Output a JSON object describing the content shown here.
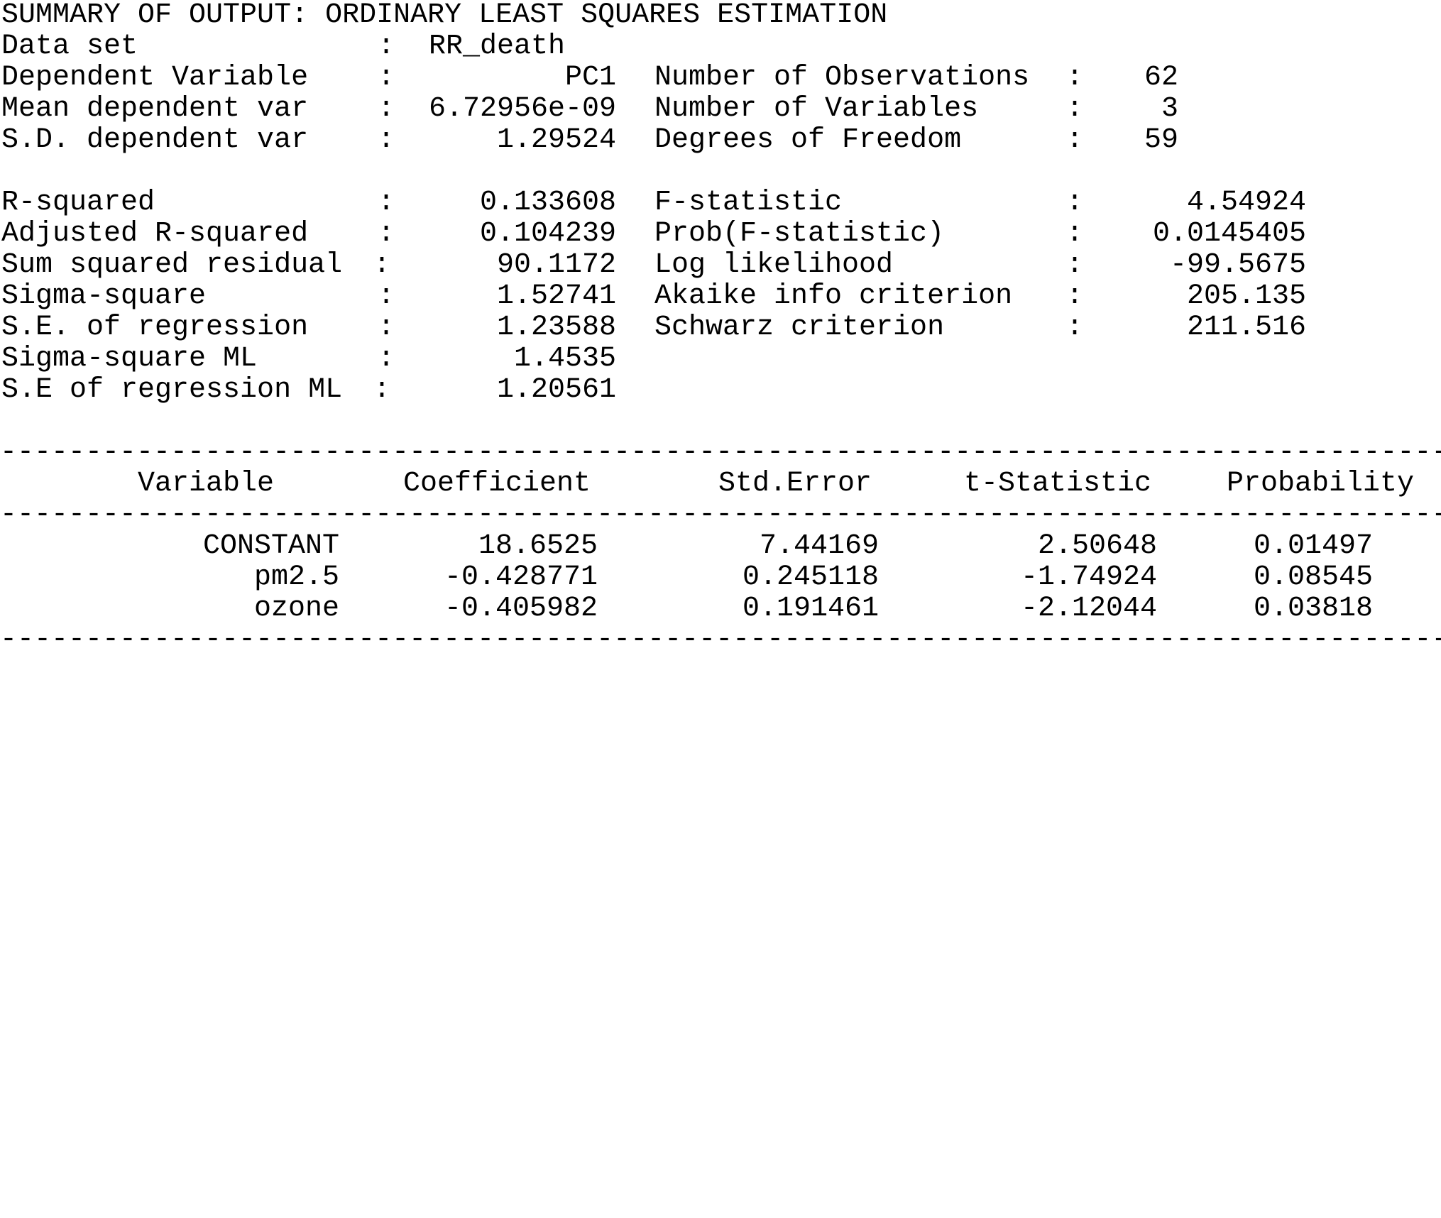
{
  "title": "SUMMARY OF OUTPUT: ORDINARY LEAST SQUARES ESTIMATION",
  "dataset": {
    "label": "Data set",
    "value": "RR_death"
  },
  "left_stats_top": [
    {
      "label": "Dependent Variable",
      "value": "PC1"
    },
    {
      "label": "Mean dependent var",
      "value": "6.72956e-09"
    },
    {
      "label": "S.D. dependent var",
      "value": "1.29524"
    }
  ],
  "right_stats_top": [
    {
      "label": "Number of Observations",
      "value": "62"
    },
    {
      "label": "Number of Variables",
      "value": "3"
    },
    {
      "label": "Degrees of Freedom",
      "value": "59"
    }
  ],
  "left_stats_bottom": [
    {
      "label": "R-squared",
      "value": "0.133608"
    },
    {
      "label": "Adjusted R-squared",
      "value": "0.104239"
    },
    {
      "label": "Sum squared residual",
      "value": "90.1172"
    },
    {
      "label": "Sigma-square",
      "value": "1.52741"
    },
    {
      "label": "S.E. of regression",
      "value": "1.23588"
    },
    {
      "label": "Sigma-square ML",
      "value": "1.4535"
    },
    {
      "label": "S.E of regression ML",
      "value": "1.20561"
    }
  ],
  "right_stats_bottom": [
    {
      "label": "F-statistic",
      "value": "4.54924"
    },
    {
      "label": "Prob(F-statistic)",
      "value": "0.0145405"
    },
    {
      "label": "Log likelihood",
      "value": "-99.5675"
    },
    {
      "label": "Akaike info criterion",
      "value": "205.135"
    },
    {
      "label": "Schwarz criterion",
      "value": "211.516"
    }
  ],
  "table": {
    "headers": [
      "Variable",
      "Coefficient",
      "Std.Error",
      "t-Statistic",
      "Probability"
    ],
    "rows": [
      {
        "variable": "CONSTANT",
        "coefficient": "18.6525",
        "std_error": "7.44169",
        "t_statistic": "2.50648",
        "probability": "0.01497"
      },
      {
        "variable": "pm2.5",
        "coefficient": "-0.428771",
        "std_error": "0.245118",
        "t_statistic": "-1.74924",
        "probability": "0.08545"
      },
      {
        "variable": "ozone",
        "coefficient": "-0.405982",
        "std_error": "0.191461",
        "t_statistic": "-2.12044",
        "probability": "0.03818"
      }
    ]
  }
}
